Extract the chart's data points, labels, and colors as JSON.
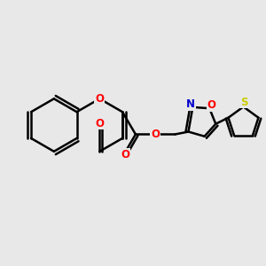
{
  "background_color": "#e8e8e8",
  "bond_color": "#000000",
  "bond_width": 1.8,
  "atom_colors": {
    "O": "#ff0000",
    "N": "#0000cd",
    "S": "#cccc00",
    "C": "#000000"
  },
  "font_size": 8.5,
  "figsize": [
    3.0,
    3.0
  ],
  "dpi": 100
}
